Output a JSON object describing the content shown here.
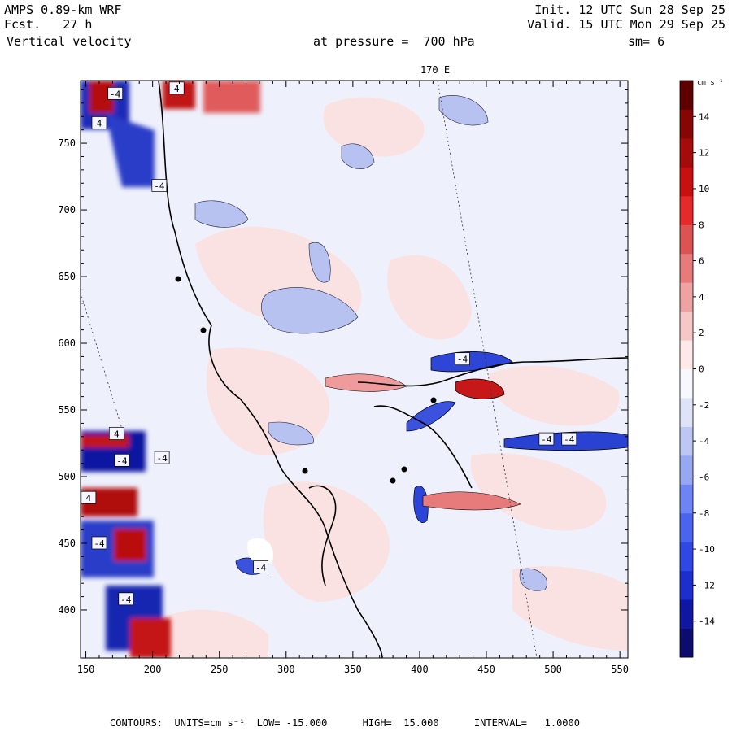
{
  "header": {
    "model": "AMPS 0.89-km WRF",
    "init": "Init. 12 UTC Sun 28 Sep 25",
    "fcst": "Fcst.   27 h",
    "valid": "Valid. 15 UTC Mon 29 Sep 25",
    "field": "Vertical velocity",
    "pressure": "at pressure =  700 hPa",
    "smooth": "sm= 6"
  },
  "map": {
    "meridian_label": "170 E",
    "x_ticks": [
      150,
      200,
      250,
      300,
      350,
      400,
      450,
      500,
      550
    ],
    "y_ticks": [
      400,
      450,
      500,
      550,
      600,
      650,
      700,
      750
    ],
    "xlim": [
      146,
      556
    ],
    "ylim": [
      364,
      797
    ],
    "contour_labels": [
      {
        "text": "-4",
        "x": 172,
        "y": 787
      },
      {
        "text": "4",
        "x": 218,
        "y": 791
      },
      {
        "text": "4",
        "x": 160,
        "y": 765
      },
      {
        "text": "-4",
        "x": 205,
        "y": 718
      },
      {
        "text": "-4",
        "x": 432,
        "y": 588
      },
      {
        "text": "4",
        "x": 173,
        "y": 532
      },
      {
        "text": "-4",
        "x": 177,
        "y": 512
      },
      {
        "text": "-4",
        "x": 207,
        "y": 514
      },
      {
        "text": "4",
        "x": 152,
        "y": 484
      },
      {
        "text": "-4",
        "x": 160,
        "y": 450
      },
      {
        "text": "-4",
        "x": 281,
        "y": 432
      },
      {
        "text": "-4",
        "x": 180,
        "y": 408
      },
      {
        "text": "-4",
        "x": 495,
        "y": 528
      },
      {
        "text": "-4",
        "x": 512,
        "y": 528
      }
    ]
  },
  "colorbar": {
    "units_label": "cm s⁻¹",
    "labels": [
      "14",
      "12",
      "10",
      "8",
      "6",
      "4",
      "2",
      "0",
      "-2",
      "-4",
      "-6",
      "-8",
      "-10",
      "-12",
      "-14"
    ],
    "colors": [
      "#0c0c6e",
      "#0f17a0",
      "#1c2ecc",
      "#3048e3",
      "#4a64ee",
      "#6d84f2",
      "#96a8f2",
      "#bcc7f4",
      "#dfe3f7",
      "#f7f8fd",
      "#fde9e9",
      "#f6c7c7",
      "#efa2a2",
      "#e67b7b",
      "#dc5353",
      "#e42a2a",
      "#c81010",
      "#a50b0b",
      "#860606",
      "#5f0000"
    ]
  },
  "footer": {
    "contours": "CONTOURS:  UNITS=cm s⁻¹  LOW= -15.000      HIGH=  15.000      INTERVAL=   1.0000"
  }
}
